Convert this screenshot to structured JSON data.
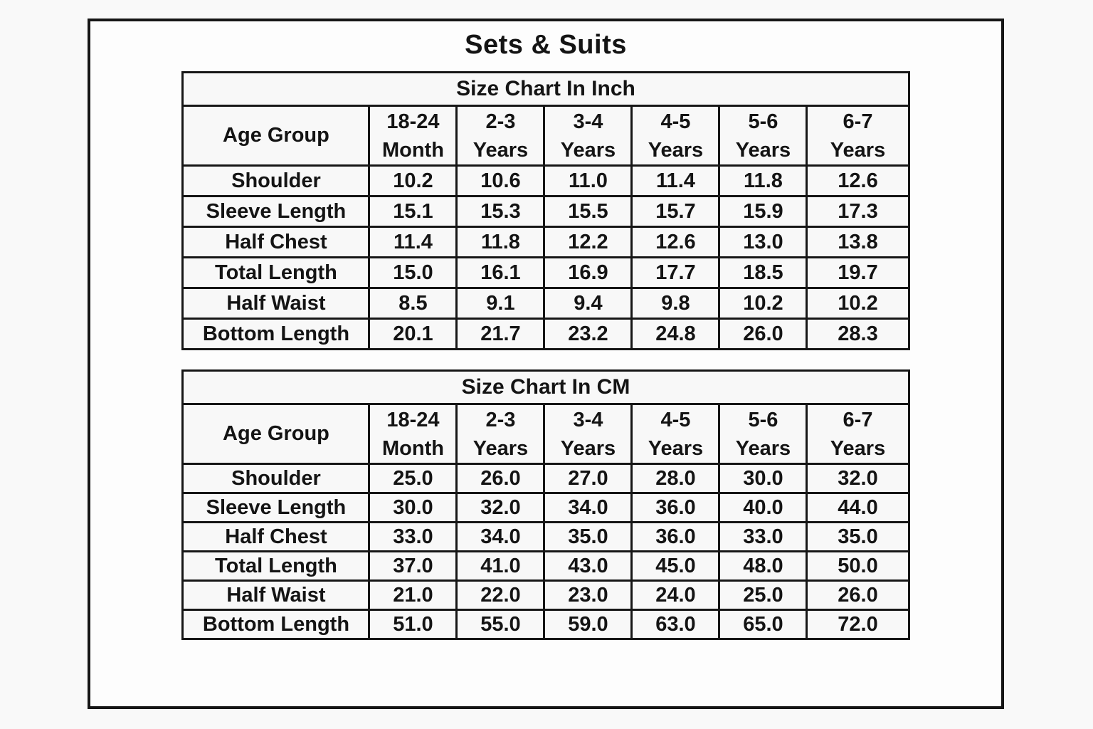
{
  "page_title": "Sets & Suits",
  "colors": {
    "border": "#161616",
    "text": "#141414",
    "page_background": "#f9f9f9",
    "panel_background": "#fdfdfd",
    "cell_background": "#f8f8f8"
  },
  "chart_data": [
    {
      "type": "table",
      "title": "Size Chart In Inch",
      "header_label": "Age Group",
      "age_groups": [
        [
          "18-24",
          "Month"
        ],
        [
          "2-3",
          "Years"
        ],
        [
          "3-4",
          "Years"
        ],
        [
          "4-5",
          "Years"
        ],
        [
          "5-6",
          "Years"
        ],
        [
          "6-7",
          "Years"
        ]
      ],
      "rows": [
        {
          "label": "Shoulder",
          "values": [
            "10.2",
            "10.6",
            "11.0",
            "11.4",
            "11.8",
            "12.6"
          ]
        },
        {
          "label": "Sleeve Length",
          "values": [
            "15.1",
            "15.3",
            "15.5",
            "15.7",
            "15.9",
            "17.3"
          ]
        },
        {
          "label": "Half Chest",
          "values": [
            "11.4",
            "11.8",
            "12.2",
            "12.6",
            "13.0",
            "13.8"
          ]
        },
        {
          "label": "Total Length",
          "values": [
            "15.0",
            "16.1",
            "16.9",
            "17.7",
            "18.5",
            "19.7"
          ]
        },
        {
          "label": "Half Waist",
          "values": [
            "8.5",
            "9.1",
            "9.4",
            "9.8",
            "10.2",
            "10.2"
          ]
        },
        {
          "label": "Bottom Length",
          "values": [
            "20.1",
            "21.7",
            "23.2",
            "24.8",
            "26.0",
            "28.3"
          ]
        }
      ]
    },
    {
      "type": "table",
      "title": "Size Chart In CM",
      "header_label": "Age Group",
      "age_groups": [
        [
          "18-24",
          "Month"
        ],
        [
          "2-3",
          "Years"
        ],
        [
          "3-4",
          "Years"
        ],
        [
          "4-5",
          "Years"
        ],
        [
          "5-6",
          "Years"
        ],
        [
          "6-7",
          "Years"
        ]
      ],
      "rows": [
        {
          "label": "Shoulder",
          "values": [
            "25.0",
            "26.0",
            "27.0",
            "28.0",
            "30.0",
            "32.0"
          ]
        },
        {
          "label": "Sleeve Length",
          "values": [
            "30.0",
            "32.0",
            "34.0",
            "36.0",
            "40.0",
            "44.0"
          ]
        },
        {
          "label": "Half Chest",
          "values": [
            "33.0",
            "34.0",
            "35.0",
            "36.0",
            "33.0",
            "35.0"
          ]
        },
        {
          "label": "Total Length",
          "values": [
            "37.0",
            "41.0",
            "43.0",
            "45.0",
            "48.0",
            "50.0"
          ]
        },
        {
          "label": "Half Waist",
          "values": [
            "21.0",
            "22.0",
            "23.0",
            "24.0",
            "25.0",
            "26.0"
          ]
        },
        {
          "label": "Bottom Length",
          "values": [
            "51.0",
            "55.0",
            "59.0",
            "63.0",
            "65.0",
            "72.0"
          ]
        }
      ]
    }
  ]
}
